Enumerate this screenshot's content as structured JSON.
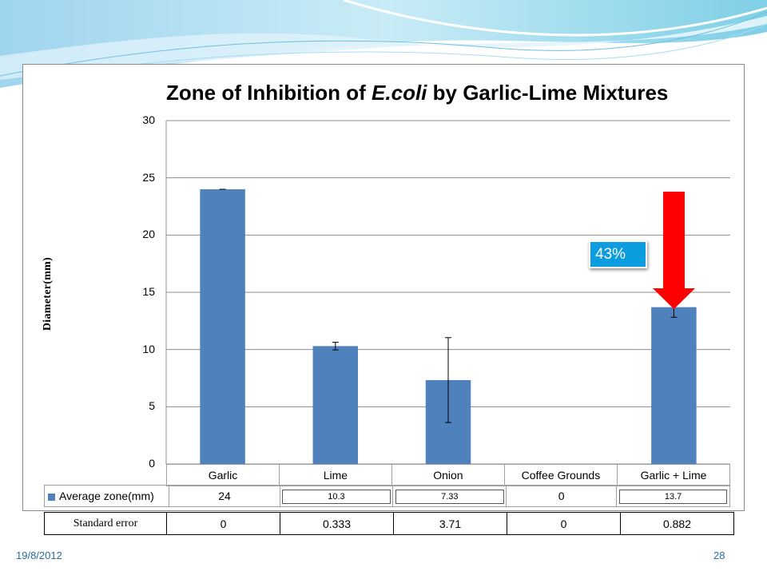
{
  "chart_data": {
    "type": "bar",
    "title_parts": [
      "Zone of Inhibition of ",
      "E.coli",
      " by Garlic-Lime Mixtures"
    ],
    "ylabel": "Diameter(mm)",
    "ylim": [
      0,
      30
    ],
    "yticks": [
      0,
      5,
      10,
      15,
      20,
      25,
      30
    ],
    "grid": true,
    "categories": [
      "Garlic",
      "Lime",
      "Onion",
      "Coffee Grounds",
      "Garlic + Lime"
    ],
    "series": [
      {
        "name": "Average zone(mm)",
        "values": [
          24,
          10.3,
          7.33,
          0,
          13.7
        ],
        "color": "#4f81bd"
      }
    ],
    "table_values": [
      "24",
      "10.3",
      "7.33",
      "0",
      "13.7"
    ],
    "standard_error_label": "Standard error",
    "standard_error": [
      0,
      0.333,
      3.71,
      0,
      0.882
    ],
    "standard_error_text": [
      "0",
      "0.333",
      "3.71",
      "0",
      "0.882"
    ],
    "annotation": {
      "text": "43%",
      "color": "#0b9de0",
      "arrow_color": "#ff0000"
    }
  },
  "footer": {
    "date": "19/8/2012",
    "page": "28"
  }
}
